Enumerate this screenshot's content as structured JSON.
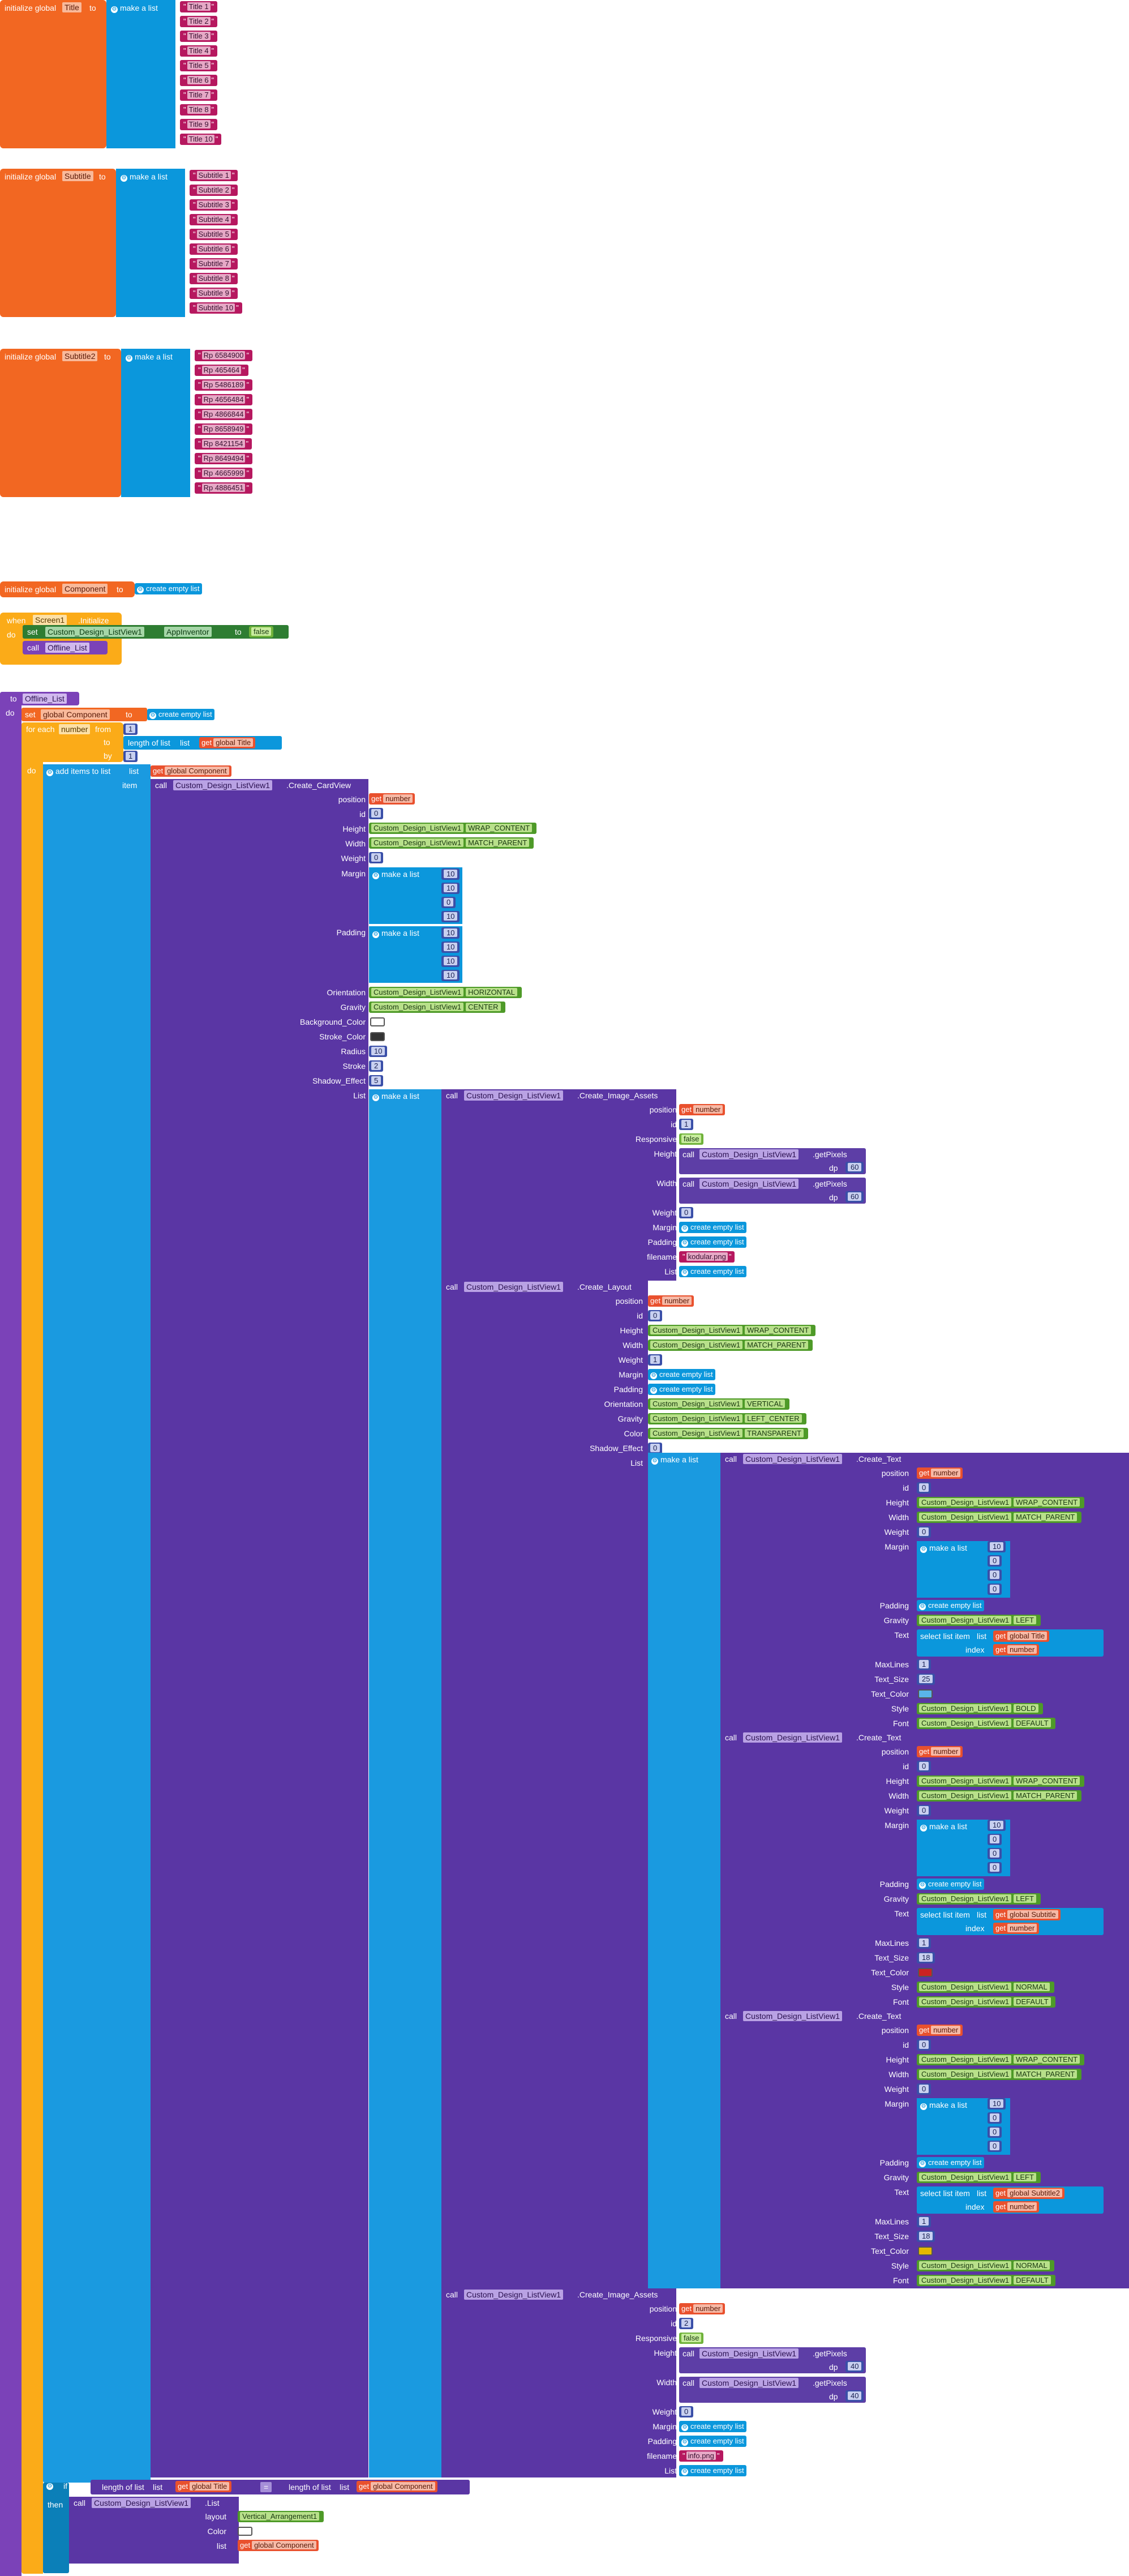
{
  "blocks": {
    "init_title": {
      "initialize_label": "initialize global",
      "var_name": "Title",
      "to_label": "to",
      "make_list_label": "make a list",
      "items": [
        "Title 1",
        "Title 2",
        "Title 3",
        "Title 4",
        "Title 5",
        "Title 6",
        "Title 7",
        "Title 8",
        "Title 9",
        "Title 10"
      ]
    },
    "init_subtitle": {
      "initialize_label": "initialize global",
      "var_name": "Subtitle",
      "to_label": "to",
      "make_list_label": "make a list",
      "items": [
        "Subtitle 1",
        "Subtitle 2",
        "Subtitle 3",
        "Subtitle 4",
        "Subtitle 5",
        "Subtitle 6",
        "Subtitle 7",
        "Subtitle 8",
        "Subtitle 9",
        "Subtitle 10"
      ]
    },
    "init_subtitle2": {
      "initialize_label": "initialize global",
      "var_name": "Subtitle2",
      "to_label": "to",
      "make_list_label": "make a list",
      "items": [
        "Rp 6584900",
        "Rp 465464",
        "Rp 5486189",
        "Rp 4656484",
        "Rp 4866844",
        "Rp 8658949",
        "Rp 8421154",
        "Rp 8649494",
        "Rp 4665999",
        "Rp 4886451"
      ]
    },
    "init_component": {
      "initialize_label": "initialize global",
      "var_name": "Component",
      "to_label": "to",
      "create_empty": "create empty list"
    },
    "when_screen": {
      "when_label": "when",
      "component": "Screen1",
      "event": ".Initialize",
      "do_label": "do",
      "set_label": "set",
      "set_component": "Custom_Design_ListView1",
      "set_prop": "AppInventor",
      "to_label": "to",
      "value": "false",
      "call_label": "call",
      "proc_name": "Offline_List"
    },
    "proc": {
      "to_label": "to",
      "name": "Offline_List",
      "do_label": "do",
      "set_label": "set",
      "set_var": "global Component",
      "to2": "to",
      "create_empty": "create empty list",
      "for_each": "for each",
      "var": "number",
      "from": "from",
      "from_val": "1",
      "to3": "to",
      "length_label": "length of list",
      "list_label": "list",
      "get_label": "get",
      "global_title": "global Title",
      "by": "by",
      "by_val": "1",
      "do2": "do",
      "add_items": "add items to list",
      "list2": "list",
      "global_component": "global Component",
      "item": "item",
      "call": "call",
      "cdl": "Custom_Design_ListView1",
      "create_cardview": ".Create_CardView"
    },
    "cardview": {
      "rows": [
        {
          "label": "position",
          "kind": "get",
          "value": "number"
        },
        {
          "label": "id",
          "kind": "num",
          "value": "0"
        },
        {
          "label": "Height",
          "kind": "prop",
          "value": "WRAP_CONTENT"
        },
        {
          "label": "Width",
          "kind": "prop",
          "value": "MATCH_PARENT"
        },
        {
          "label": "Weight",
          "kind": "num",
          "value": "0"
        }
      ],
      "margin_label": "Margin",
      "margin_values": [
        "10",
        "10",
        "0",
        "10"
      ],
      "padding_label": "Padding",
      "padding_values": [
        "10",
        "10",
        "10",
        "10"
      ],
      "orientation_label": "Orientation",
      "orientation": "HORIZONTAL",
      "gravity_label": "Gravity",
      "gravity": "CENTER",
      "bg_label": "Background_Color",
      "stroke_color_label": "Stroke_Color",
      "radius_label": "Radius",
      "radius": "10",
      "stroke_label": "Stroke",
      "stroke": "2",
      "shadow_label": "Shadow_Effect",
      "shadow": "5",
      "list_label": "List",
      "make_list": "make a list"
    },
    "image_assets_1": {
      "call": "call",
      "comp": "Custom_Design_ListView1",
      "method": ".Create_Image_Assets",
      "position": "number",
      "id": "1",
      "responsive": "false",
      "height_call": "call",
      "getpixels": ".getPixels",
      "dp": "dp",
      "height_dp": "60",
      "width_dp": "60",
      "weight": "0",
      "filename": "kodular.png",
      "create_empty": "create empty list"
    },
    "layout": {
      "call": "call",
      "comp": "Custom_Design_ListView1",
      "method": ".Create_Layout",
      "position": "number",
      "id": "0",
      "height": "WRAP_CONTENT",
      "width": "MATCH_PARENT",
      "weight": "1",
      "orientation": "VERTICAL",
      "gravity": "LEFT_CENTER",
      "color": "TRANSPARENT",
      "shadow": "0",
      "create_empty": "create empty list",
      "make_list": "make a list"
    },
    "text1": {
      "method": ".Create_Text",
      "position": "number",
      "id": "0",
      "height": "WRAP_CONTENT",
      "width": "MATCH_PARENT",
      "weight": "0",
      "margin": [
        "10",
        "0",
        "0",
        "0"
      ],
      "gravity": "LEFT",
      "text_select": "select list item",
      "text_list": "global Title",
      "index_label": "index",
      "index_get": "number",
      "maxlines": "1",
      "text_size": "25",
      "style": "BOLD",
      "font": "DEFAULT"
    },
    "text2": {
      "method": ".Create_Text",
      "position": "number",
      "id": "0",
      "height": "WRAP_CONTENT",
      "width": "MATCH_PARENT",
      "weight": "0",
      "margin": [
        "10",
        "0",
        "0",
        "0"
      ],
      "gravity": "LEFT",
      "text_select": "select list item",
      "text_list": "global Subtitle",
      "index_label": "index",
      "index_get": "number",
      "maxlines": "1",
      "text_size": "18",
      "style": "NORMAL",
      "font": "DEFAULT"
    },
    "text3": {
      "method": ".Create_Text",
      "position": "number",
      "id": "0",
      "height": "WRAP_CONTENT",
      "width": "MATCH_PARENT",
      "weight": "0",
      "margin": [
        "10",
        "0",
        "0",
        "0"
      ],
      "gravity": "LEFT",
      "text_select": "select list item",
      "text_list": "global Subtitle2",
      "index_label": "index",
      "index_get": "number",
      "maxlines": "1",
      "text_size": "18",
      "style": "NORMAL",
      "font": "DEFAULT"
    },
    "image_assets_2": {
      "call": "call",
      "comp": "Custom_Design_ListView1",
      "method": ".Create_Image_Assets",
      "position": "number",
      "id": "2",
      "responsive": "false",
      "getpixels": ".getPixels",
      "dp": "dp",
      "height_dp": "40",
      "width_dp": "40",
      "weight": "0",
      "filename": "info.png",
      "create_empty": "create empty list"
    },
    "final_if": {
      "if_label": "if",
      "length_label": "length of list",
      "list_label": "list",
      "get": "get",
      "global_title": "global Title",
      "eq": "=",
      "global_component": "global Component",
      "then": "then",
      "call": "call",
      "comp": "Custom_Design_ListView1",
      "method": ".List",
      "layout_label": "layout",
      "layout_value": "Vertical_Arrangement1",
      "color_label": "Color",
      "list_label2": "list"
    }
  },
  "labels": {
    "position": "position",
    "id": "id",
    "height": "Height",
    "width": "Width",
    "weight": "Weight",
    "margin": "Margin",
    "padding": "Padding",
    "orientation": "Orientation",
    "gravity": "Gravity",
    "color": "Color",
    "shadow": "Shadow_Effect",
    "list": "List",
    "responsive": "Responsive",
    "filename": "filename",
    "text": "Text",
    "maxlines": "MaxLines",
    "text_size": "Text_Size",
    "text_color": "Text_Color",
    "style": "Style",
    "font": "Font",
    "get": "get",
    "call": "call"
  },
  "colors": {
    "init": "#f26722",
    "make_list": "#0b97dc",
    "string": "#b6185f",
    "procedure": "#7b42b8",
    "event": "#fbab18",
    "text1_color": "#5ab4e8",
    "text2_color": "#cc2222",
    "text3_color": "#e6b800"
  }
}
